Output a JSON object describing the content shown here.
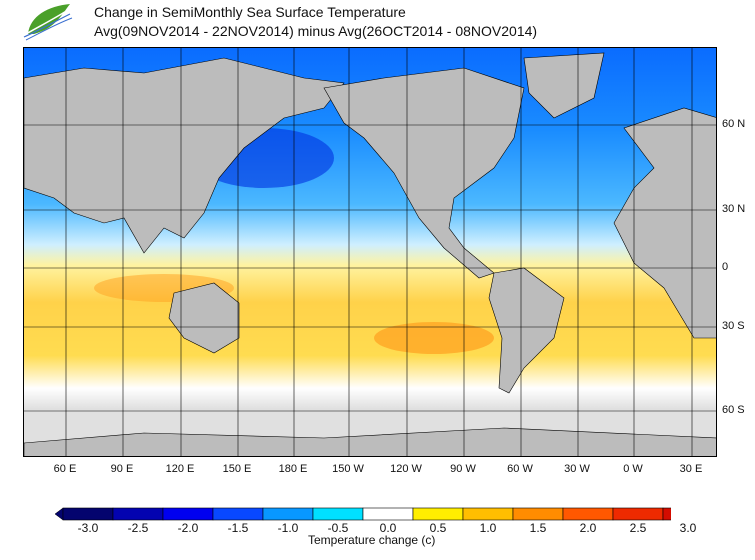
{
  "header": {
    "title_line1": "Change in SemiMonthly Sea Surface Temperature",
    "title_line2": "Avg(09NOV2014 - 22NOV2014) minus Avg(26OCT2014 - 08NOV2014)",
    "logo": "agency-leaf-logo"
  },
  "map": {
    "lon_labels": [
      "60 E",
      "90 E",
      "120 E",
      "150 E",
      "180 E",
      "150 W",
      "120 W",
      "90 W",
      "60 W",
      "30 W",
      "0 W",
      "30 E"
    ],
    "lat_labels": [
      "60 N",
      "30 N",
      "0",
      "30 S",
      "60 S"
    ],
    "land_color": "#bcbcbc",
    "nodata_color": "#e0e0e0"
  },
  "colorbar": {
    "label": "Temperature change  (c)",
    "ticks": [
      "-3.0",
      "-2.5",
      "-2.0",
      "-1.5",
      "-1.0",
      "-0.5",
      "0.0",
      "0.5",
      "1.0",
      "1.5",
      "2.0",
      "2.5",
      "3.0"
    ],
    "colors": [
      "#04046e",
      "#0303b0",
      "#0000f0",
      "#0848ff",
      "#0898ff",
      "#00e0ff",
      "#ffffff",
      "#ffee00",
      "#ffbe00",
      "#ff8c00",
      "#ff5800",
      "#ee2a00",
      "#d40c00"
    ],
    "under_color": "#04046e",
    "over_color": "#d42020"
  }
}
